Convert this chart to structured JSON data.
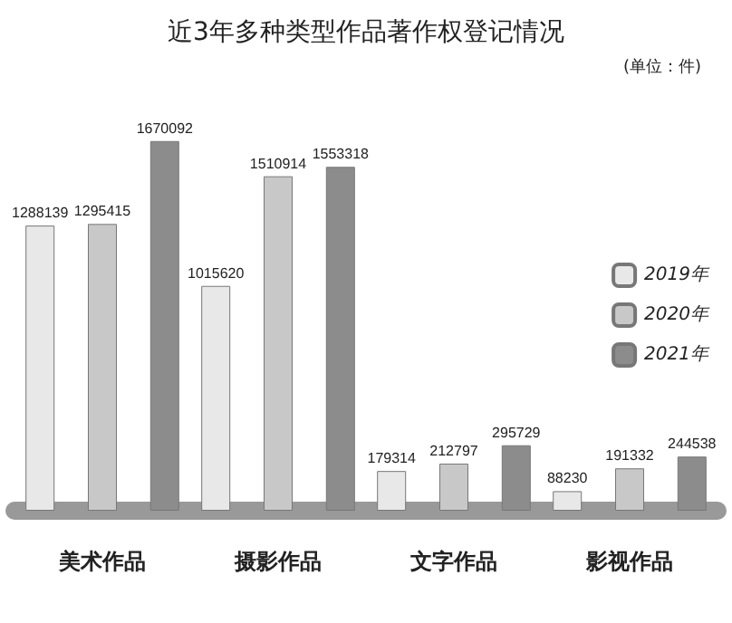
{
  "chart_data": {
    "type": "bar",
    "title": "近3年多种类型作品著作权登记情况",
    "subtitle": "(单位：件)",
    "categories": [
      "美术作品",
      "摄影作品",
      "文字作品",
      "影视作品"
    ],
    "series": [
      {
        "name": "2019年",
        "color": "#e8e8e8",
        "values": [
          1288139,
          1015620,
          179314,
          88230
        ]
      },
      {
        "name": "2020年",
        "color": "#c8c8c8",
        "values": [
          1295415,
          1510914,
          212797,
          191332
        ]
      },
      {
        "name": "2021年",
        "color": "#8c8c8c",
        "values": [
          1670092,
          1553318,
          295729,
          244538
        ]
      }
    ],
    "data_labels": true,
    "legend": "right"
  }
}
